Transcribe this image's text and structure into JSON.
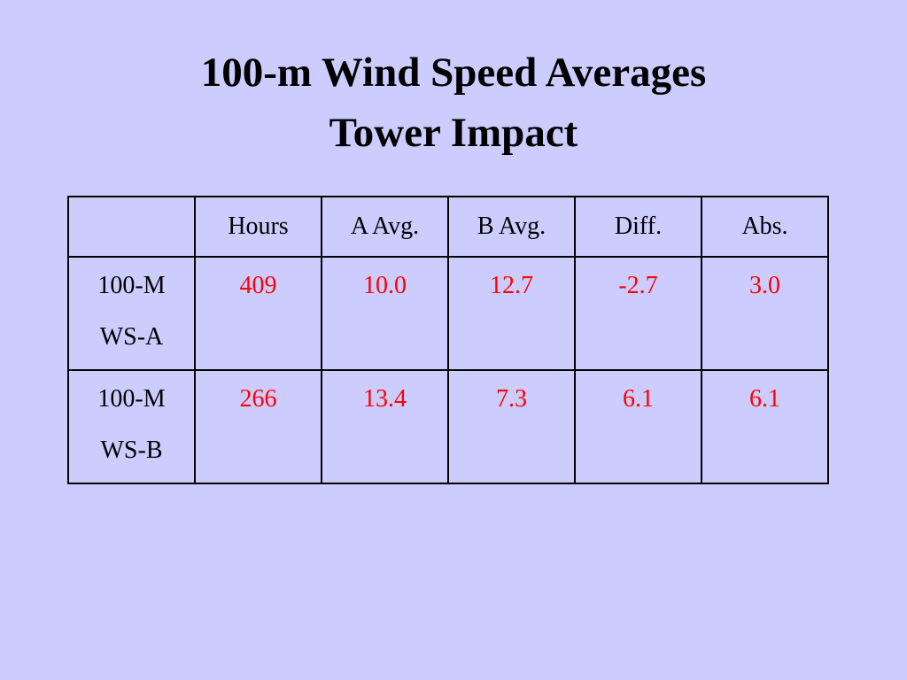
{
  "title": [
    "100-m Wind Speed Averages",
    "Tower Impact"
  ],
  "table": {
    "header": [
      "Hours",
      "A Avg.",
      "B Avg.",
      "Diff.",
      "Abs."
    ],
    "rows": [
      {
        "label": [
          "100-M",
          "WS-A"
        ],
        "cells": [
          "409",
          "10.0",
          "12.7",
          "-2.7",
          "3.0"
        ]
      },
      {
        "label": [
          "100-M",
          "WS-B"
        ],
        "cells": [
          "266",
          "13.4",
          "7.3",
          "6.1",
          "6.1"
        ]
      }
    ]
  }
}
